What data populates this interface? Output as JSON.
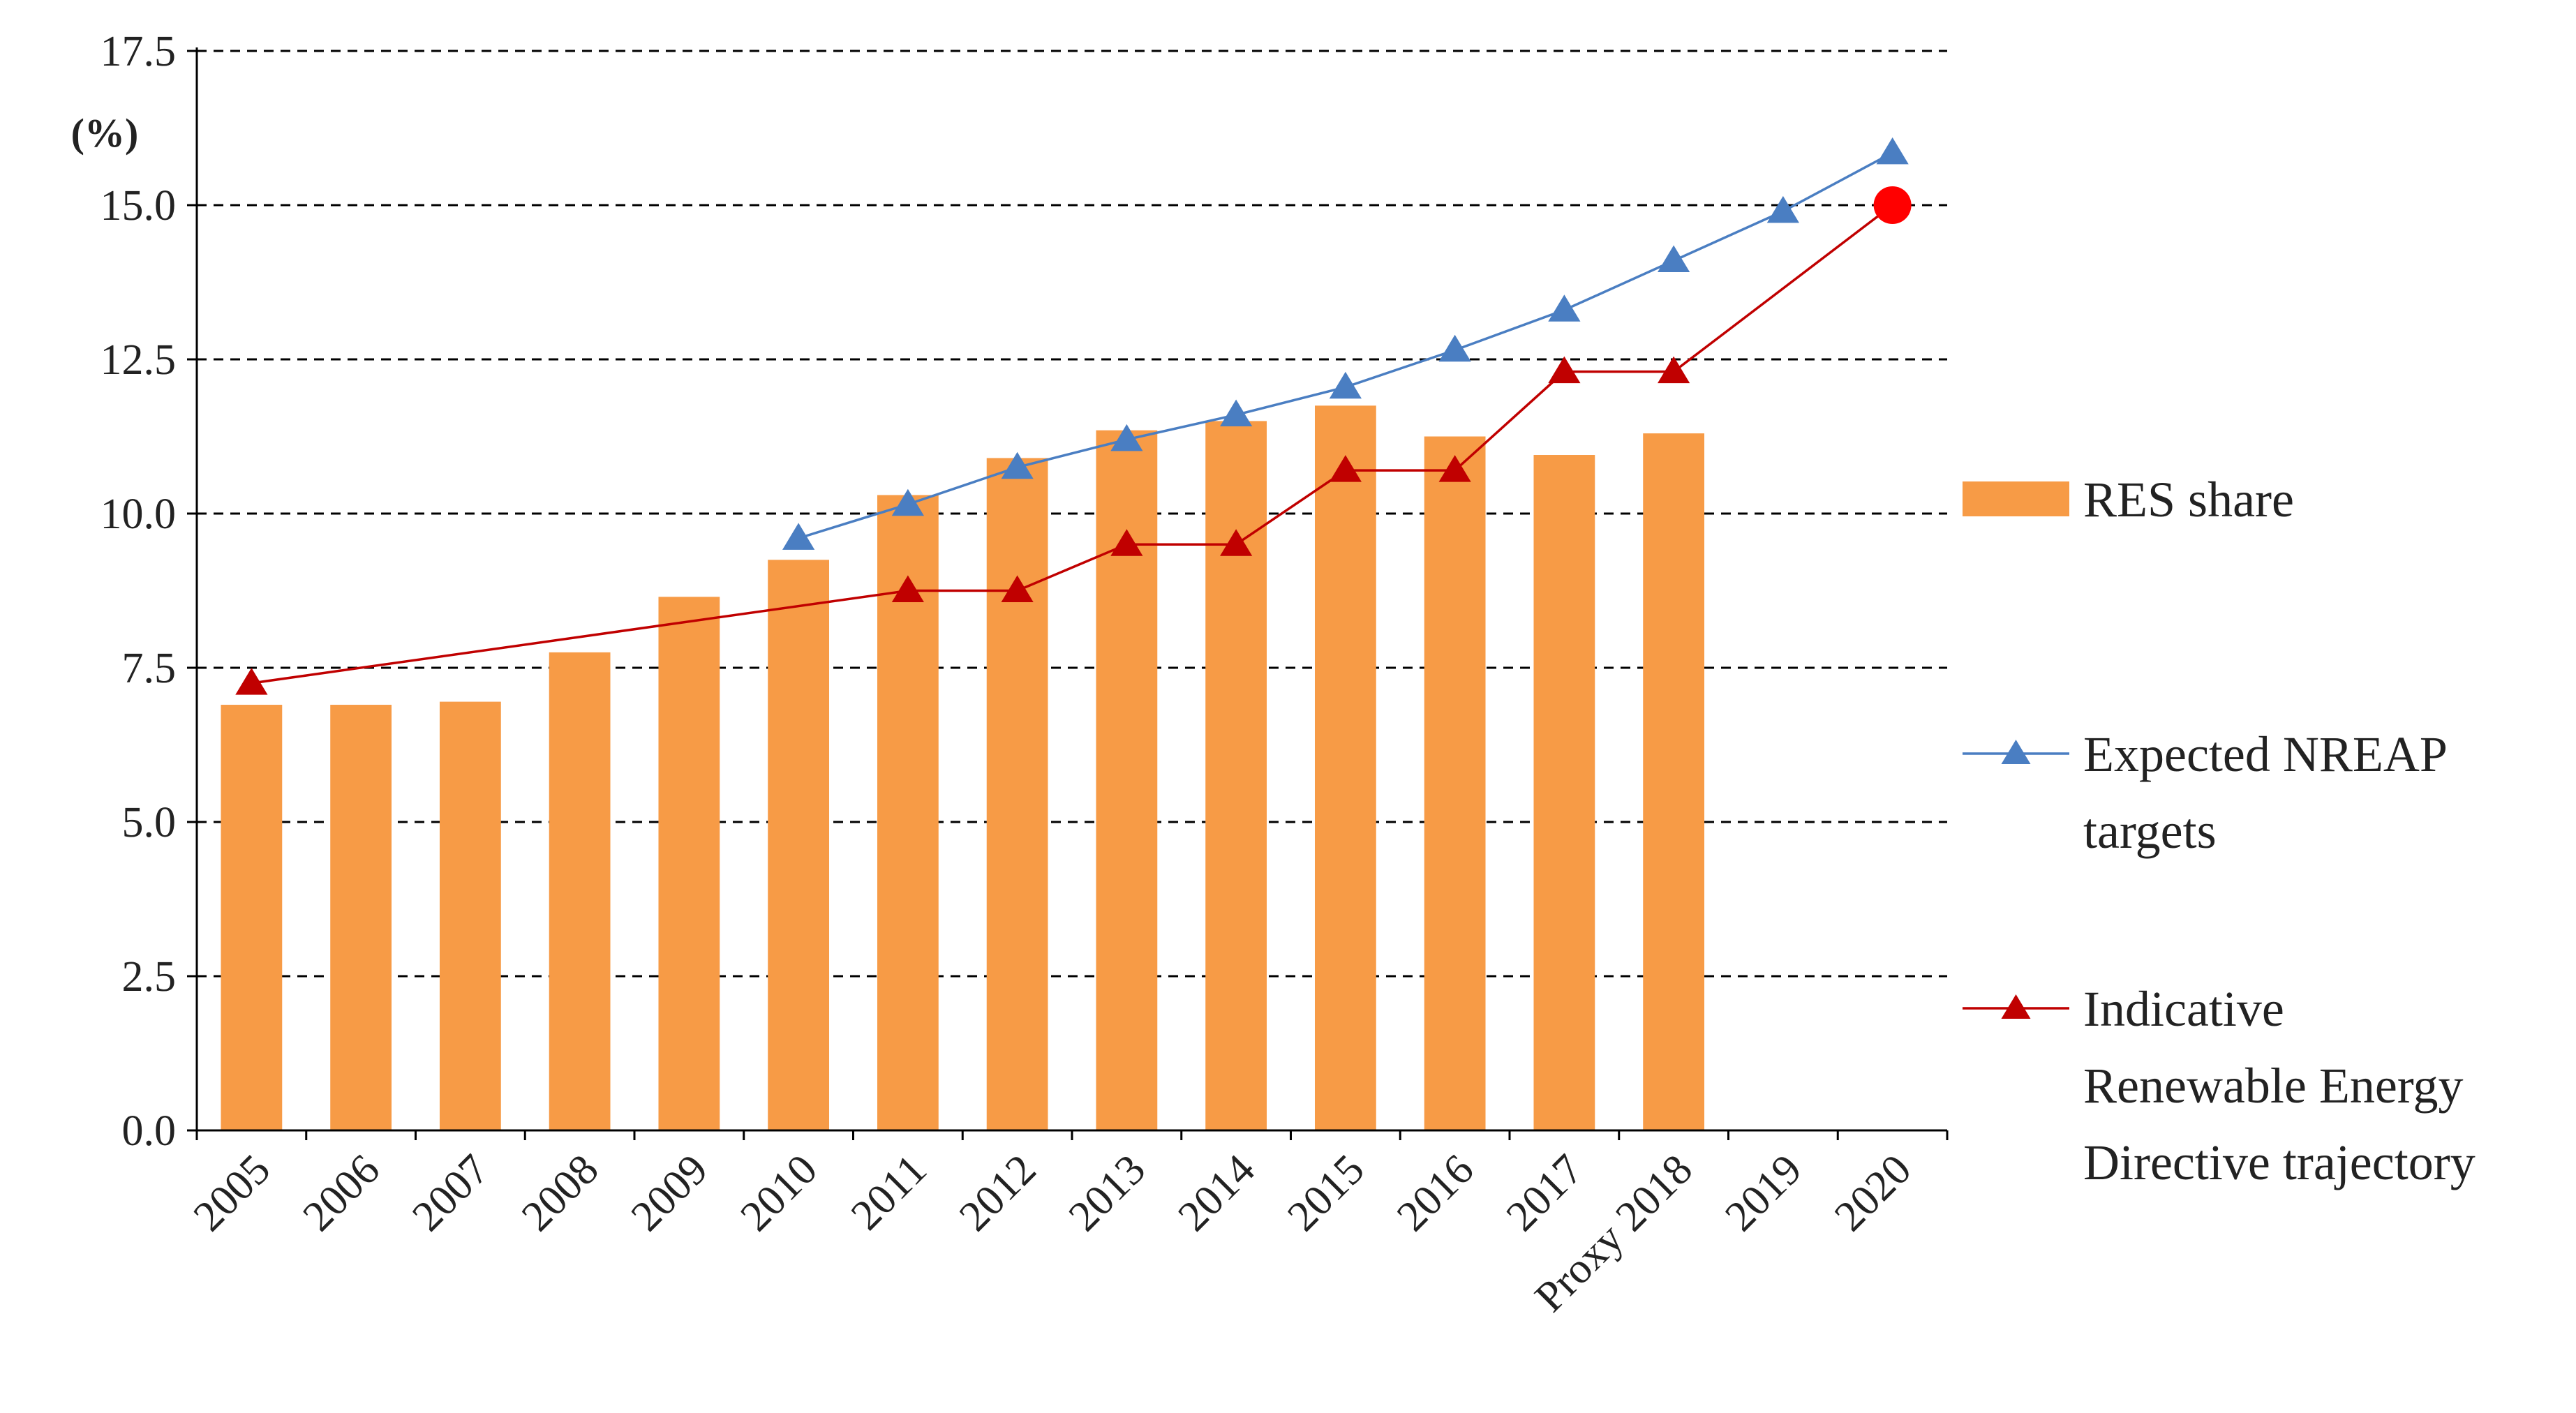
{
  "chart_data": {
    "type": "bar",
    "title": "",
    "unit_label": "(%)",
    "xlabel": "",
    "ylabel": "",
    "ylim": [
      0,
      17.5
    ],
    "yticks": [
      0.0,
      2.5,
      5.0,
      7.5,
      10.0,
      12.5,
      15.0,
      17.5
    ],
    "ytick_labels": [
      "0.0",
      "2.5",
      "5.0",
      "7.5",
      "10.0",
      "12.5",
      "15.0",
      "17.5"
    ],
    "grid": "horizontal dashed",
    "legend_position": "right",
    "categories": [
      "2005",
      "2006",
      "2007",
      "2008",
      "2009",
      "2010",
      "2011",
      "2012",
      "2013",
      "2014",
      "2015",
      "2016",
      "2017",
      "Proxy 2018",
      "2019",
      "2020"
    ],
    "series": [
      {
        "name": "RES share",
        "kind": "bar",
        "color": "#F79B46",
        "values": [
          6.9,
          6.9,
          6.95,
          7.75,
          8.65,
          9.25,
          10.3,
          10.9,
          11.35,
          11.5,
          11.75,
          11.25,
          10.95,
          11.3,
          null,
          null
        ]
      },
      {
        "name": "Expected NREAP targets",
        "kind": "line",
        "marker": "triangle",
        "color": "#4A7EC2",
        "values": [
          null,
          null,
          null,
          null,
          null,
          9.6,
          10.15,
          10.75,
          11.2,
          11.6,
          12.05,
          12.65,
          13.3,
          14.1,
          14.9,
          15.85
        ]
      },
      {
        "name": "Indicative Renewable Energy Directive trajectory",
        "kind": "line",
        "marker": "triangle",
        "color": "#C00000",
        "values": [
          7.25,
          null,
          null,
          null,
          null,
          null,
          8.75,
          8.75,
          9.5,
          9.5,
          10.7,
          10.7,
          12.3,
          12.3,
          null,
          15.0
        ]
      }
    ],
    "annotations": [
      {
        "type": "point",
        "category": "2020",
        "value": 15.0,
        "marker": "circle",
        "color": "#FF0000"
      }
    ],
    "legend_lines": [
      [
        "RES share"
      ],
      [
        "Expected NREAP",
        "targets"
      ],
      [
        "Indicative",
        "Renewable Energy",
        "Directive trajectory"
      ]
    ]
  }
}
